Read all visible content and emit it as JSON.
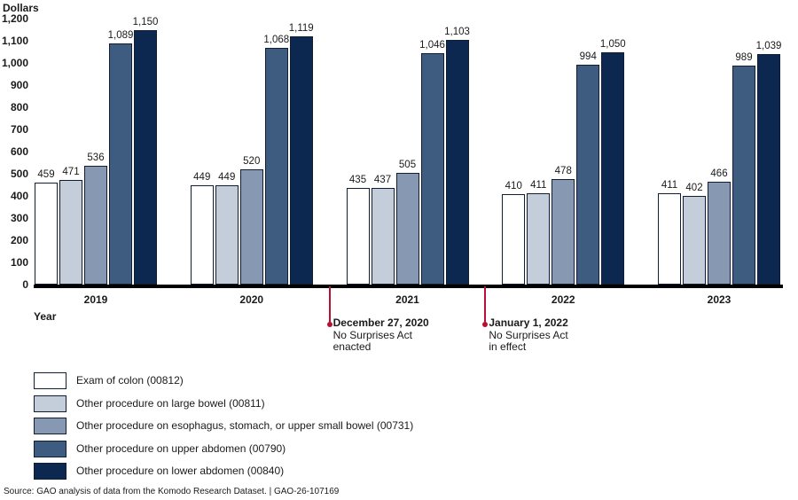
{
  "chart_data": {
    "type": "bar",
    "title": "",
    "ylabel": "Dollars",
    "xlabel": "Year",
    "ylim": [
      0,
      1200
    ],
    "ytick_step": 100,
    "grid": false,
    "legend_position": "bottom-left",
    "categories": [
      "2019",
      "2020",
      "2021",
      "2022",
      "2023"
    ],
    "series": [
      {
        "name": "Exam of colon (00812)",
        "color": "#ffffff",
        "values": [
          459,
          449,
          435,
          410,
          411
        ]
      },
      {
        "name": "Other procedure on large bowel (00811)",
        "color": "#c4cdda",
        "values": [
          471,
          449,
          437,
          411,
          402
        ]
      },
      {
        "name": "Other procedure on esophagus, stomach, or upper small bowel (00731)",
        "color": "#8698b2",
        "values": [
          536,
          520,
          505,
          478,
          466
        ]
      },
      {
        "name": "Other procedure on upper abdomen (00790)",
        "color": "#3e5c80",
        "values": [
          1089,
          1068,
          1046,
          994,
          989
        ]
      },
      {
        "name": "Other procedure on lower abdomen (00840)",
        "color": "#0c2750",
        "values": [
          1150,
          1119,
          1103,
          1050,
          1039
        ]
      }
    ],
    "annotations": [
      {
        "date": "December 27, 2020",
        "lines": [
          "No Surprises Act",
          "enacted"
        ],
        "after_index": 1
      },
      {
        "date": "January 1, 2022",
        "lines": [
          "No Surprises Act",
          "in effect"
        ],
        "after_index": 2
      }
    ],
    "annotation_color": "#bb0e32",
    "bar_border_color": "#101d33",
    "axis_color": "#000000"
  },
  "source_line": "Source: GAO analysis of data from the Komodo Research Dataset.  |  GAO-26-107169"
}
